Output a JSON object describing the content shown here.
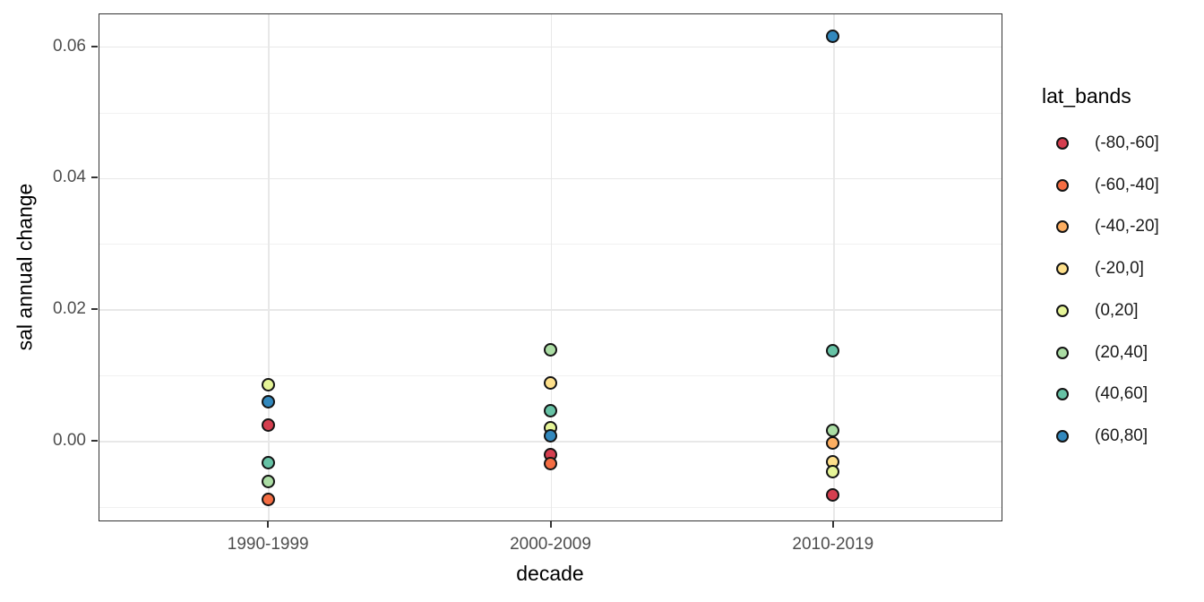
{
  "chart_data": {
    "type": "scatter",
    "title": "",
    "xlabel": "decade",
    "ylabel": "sal annual change",
    "legend_title": "lat_bands",
    "legend_position": "right",
    "grid": true,
    "categories": [
      "1990-1999",
      "2000-2009",
      "2010-2019"
    ],
    "ylim": [
      -0.0123,
      0.065
    ],
    "y_ticks": [
      0,
      0.02,
      0.04,
      0.06
    ],
    "y_tick_labels": [
      "0.00",
      "0.02",
      "0.04",
      "0.06"
    ],
    "y_minor_ticks": [
      -0.01,
      0.01,
      0.03,
      0.05
    ],
    "series": [
      {
        "name": "(-80,-60]",
        "color": "#D53E4F",
        "points": [
          {
            "decade": "1990-1999",
            "value": 0.0023
          },
          {
            "decade": "2000-2009",
            "value": -0.0022
          },
          {
            "decade": "2010-2019",
            "value": -0.0083
          }
        ]
      },
      {
        "name": "(-60,-40]",
        "color": "#F46D43",
        "points": [
          {
            "decade": "1990-1999",
            "value": -0.009
          },
          {
            "decade": "2000-2009",
            "value": -0.0035
          }
        ]
      },
      {
        "name": "(-40,-20]",
        "color": "#FDAE61",
        "points": [
          {
            "decade": "2010-2019",
            "value": -0.0004
          }
        ]
      },
      {
        "name": "(-20,0]",
        "color": "#FEE08B",
        "points": [
          {
            "decade": "2000-2009",
            "value": 0.0087
          },
          {
            "decade": "2010-2019",
            "value": -0.0033
          }
        ]
      },
      {
        "name": "(0,20]",
        "color": "#E6F598",
        "points": [
          {
            "decade": "1990-1999",
            "value": 0.0085
          },
          {
            "decade": "2000-2009",
            "value": 0.002
          },
          {
            "decade": "2010-2019",
            "value": -0.0048
          }
        ]
      },
      {
        "name": "(20,40]",
        "color": "#ABDDA4",
        "points": [
          {
            "decade": "1990-1999",
            "value": -0.0062
          },
          {
            "decade": "2000-2009",
            "value": 0.0138
          },
          {
            "decade": "2010-2019",
            "value": 0.0015
          }
        ]
      },
      {
        "name": "(40,60]",
        "color": "#66C2A5",
        "points": [
          {
            "decade": "1990-1999",
            "value": -0.0034
          },
          {
            "decade": "2000-2009",
            "value": 0.0046
          },
          {
            "decade": "2010-2019",
            "value": 0.0137
          }
        ]
      },
      {
        "name": "(60,80]",
        "color": "#3288BD",
        "points": [
          {
            "decade": "1990-1999",
            "value": 0.0059
          },
          {
            "decade": "2000-2009",
            "value": 0.0007
          },
          {
            "decade": "2010-2019",
            "value": 0.0615
          }
        ]
      }
    ]
  }
}
